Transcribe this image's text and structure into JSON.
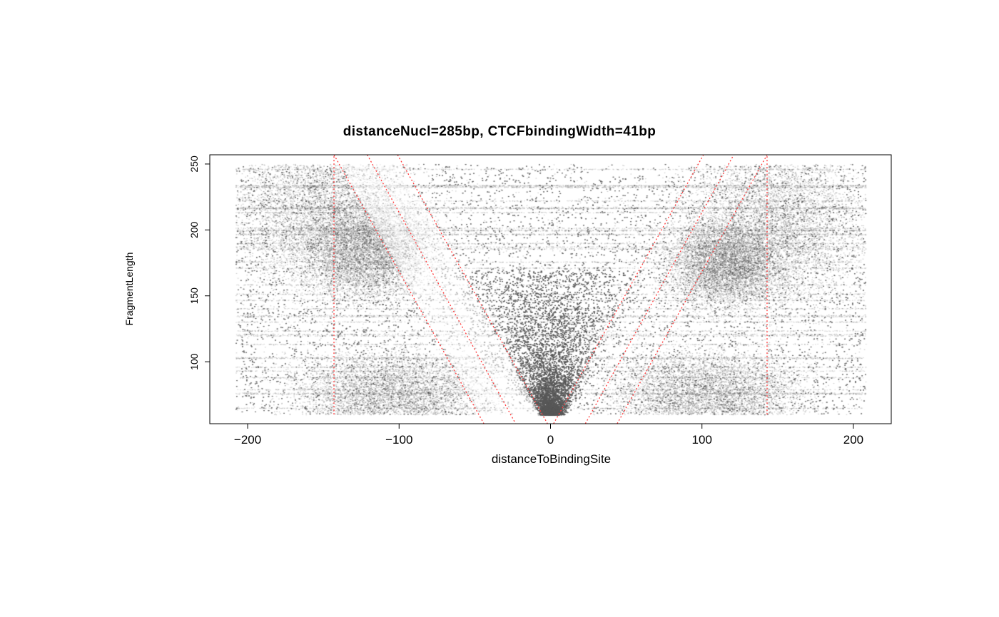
{
  "chart_data": {
    "type": "scatter",
    "title": "distanceNucl=285bp, CTCFbindingWidth=41bp",
    "xlabel": "distanceToBindingSite",
    "ylabel": "FragmentLength",
    "xlim": [
      -225,
      225
    ],
    "ylim": [
      53,
      257
    ],
    "x_ticks": [
      -200,
      -100,
      0,
      100,
      200
    ],
    "y_ticks": [
      100,
      150,
      200,
      250
    ],
    "grid": false,
    "point_color": "#5a5a5a",
    "line_color": "#ff3b3b",
    "points_x_range": [
      -208,
      208
    ],
    "points_y_range": [
      60,
      250
    ],
    "reference_lines": [
      {
        "name": "vertical-left",
        "x": [
          -143,
          -143
        ],
        "y": [
          60,
          257
        ]
      },
      {
        "name": "vertical-right",
        "x": [
          143,
          143
        ],
        "y": [
          60,
          257
        ]
      },
      {
        "name": "left-diagonal-1",
        "x": [
          -143,
          -44
        ],
        "y": [
          257,
          53
        ]
      },
      {
        "name": "left-diagonal-2",
        "x": [
          -121,
          -23
        ],
        "y": [
          257,
          53
        ]
      },
      {
        "name": "left-diagonal-3",
        "x": [
          -101,
          -2
        ],
        "y": [
          257,
          53
        ]
      },
      {
        "name": "right-diagonal-1",
        "x": [
          2,
          101
        ],
        "y": [
          53,
          257
        ]
      },
      {
        "name": "right-diagonal-2",
        "x": [
          23,
          121
        ],
        "y": [
          53,
          257
        ]
      },
      {
        "name": "right-diagonal-3",
        "x": [
          44,
          143
        ],
        "y": [
          53,
          257
        ]
      }
    ]
  }
}
